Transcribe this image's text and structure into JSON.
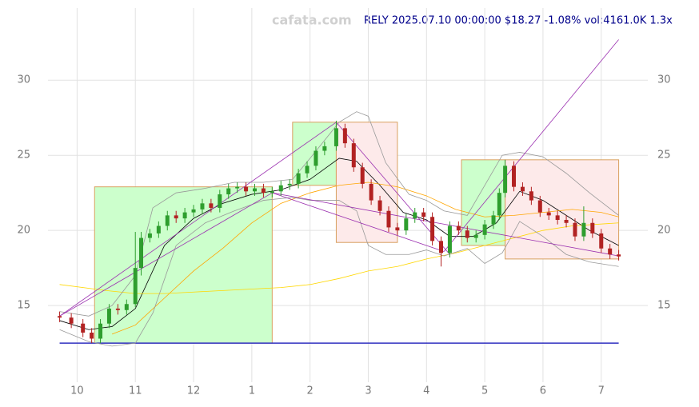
{
  "chart_data": {
    "type": "candlestick",
    "watermark": "cafata.com",
    "title": "RELY 2025.07.10 00:00:00 $18.27 -1.08% vol:4161.0K 1.3x",
    "xlim": [
      9.5,
      19.8
    ],
    "ylim": [
      9.9,
      34.8
    ],
    "xticks": [
      10,
      11,
      12,
      {
        "value": 13,
        "label": "1"
      },
      {
        "value": 14,
        "label": "2"
      },
      {
        "value": 15,
        "label": "3"
      },
      {
        "value": 16,
        "label": "4"
      },
      {
        "value": 17,
        "label": "5"
      },
      {
        "value": 18,
        "label": "6"
      },
      {
        "value": 19,
        "label": "7"
      }
    ],
    "yticks": [
      15,
      20,
      25,
      30
    ],
    "grid": true,
    "up_color": "#2e9e2e",
    "down_color": "#b22222",
    "x": [
      9.7,
      9.9,
      10.1,
      10.25,
      10.4,
      10.55,
      10.7,
      10.85,
      11.0,
      11.1,
      11.25,
      11.4,
      11.55,
      11.7,
      11.85,
      12.0,
      12.15,
      12.3,
      12.45,
      12.6,
      12.75,
      12.9,
      13.05,
      13.2,
      13.35,
      13.5,
      13.65,
      13.8,
      13.95,
      14.1,
      14.25,
      14.45,
      14.6,
      14.75,
      14.9,
      15.05,
      15.2,
      15.35,
      15.5,
      15.65,
      15.8,
      15.95,
      16.1,
      16.25,
      16.4,
      16.55,
      16.7,
      16.85,
      17.0,
      17.15,
      17.25,
      17.35,
      17.5,
      17.65,
      17.8,
      17.95,
      18.1,
      18.25,
      18.4,
      18.55,
      18.7,
      18.85,
      19.0,
      19.15,
      19.3
    ],
    "open": [
      14.3,
      14.2,
      13.8,
      13.2,
      12.8,
      13.8,
      14.8,
      14.7,
      15.1,
      17.5,
      19.5,
      19.8,
      20.3,
      21.0,
      20.8,
      21.2,
      21.4,
      21.8,
      21.5,
      22.4,
      22.8,
      22.9,
      22.6,
      22.8,
      22.5,
      22.6,
      23.0,
      23.1,
      23.8,
      24.3,
      25.3,
      25.6,
      26.8,
      25.8,
      24.2,
      23.1,
      22.0,
      21.3,
      20.2,
      20.0,
      20.8,
      21.2,
      20.9,
      19.3,
      18.5,
      20.3,
      20.0,
      19.5,
      19.7,
      20.4,
      21.0,
      22.5,
      24.3,
      22.9,
      22.6,
      22.0,
      21.2,
      21.0,
      20.7,
      20.5,
      19.6,
      20.5,
      19.8,
      18.8,
      18.4
    ],
    "high": [
      14.6,
      14.5,
      14.1,
      13.5,
      14.1,
      15.1,
      15.1,
      15.4,
      19.9,
      19.9,
      20.1,
      20.6,
      21.3,
      21.3,
      21.5,
      21.7,
      22.1,
      22.1,
      22.7,
      23.1,
      23.2,
      23.2,
      23.1,
      23.1,
      22.9,
      23.3,
      23.4,
      24.1,
      24.6,
      25.6,
      25.9,
      27.3,
      27.1,
      26.1,
      24.5,
      23.4,
      22.3,
      21.6,
      20.5,
      21.1,
      21.5,
      21.5,
      21.2,
      19.6,
      20.6,
      20.6,
      20.3,
      20.0,
      20.7,
      21.3,
      22.8,
      24.7,
      24.6,
      23.2,
      22.9,
      22.3,
      21.5,
      21.3,
      21.0,
      20.8,
      21.6,
      20.8,
      20.1,
      19.1,
      18.7
    ],
    "low": [
      13.9,
      13.5,
      12.9,
      12.5,
      12.5,
      13.5,
      14.4,
      14.4,
      14.9,
      17.0,
      19.2,
      19.5,
      20.0,
      20.5,
      20.5,
      20.9,
      21.1,
      21.2,
      21.2,
      22.1,
      22.5,
      22.3,
      22.3,
      22.2,
      22.2,
      22.3,
      22.7,
      22.8,
      23.5,
      24.0,
      25.0,
      25.3,
      25.5,
      23.9,
      22.8,
      21.7,
      21.0,
      19.9,
      19.7,
      19.7,
      20.5,
      20.6,
      19.0,
      17.6,
      18.2,
      19.7,
      19.2,
      19.2,
      19.4,
      20.1,
      20.7,
      22.2,
      22.6,
      22.3,
      21.7,
      20.9,
      20.7,
      20.4,
      20.2,
      19.3,
      19.3,
      19.5,
      18.5,
      18.1,
      18.0
    ],
    "close": [
      14.2,
      13.8,
      13.2,
      12.8,
      13.8,
      14.8,
      14.7,
      15.1,
      17.5,
      19.5,
      19.8,
      20.3,
      21.0,
      20.8,
      21.2,
      21.4,
      21.8,
      21.5,
      22.4,
      22.8,
      22.9,
      22.6,
      22.8,
      22.5,
      22.6,
      23.0,
      23.1,
      23.8,
      24.3,
      25.3,
      25.6,
      26.8,
      25.8,
      24.2,
      23.1,
      22.0,
      21.3,
      20.2,
      20.0,
      20.8,
      21.2,
      20.9,
      19.3,
      18.5,
      20.3,
      20.0,
      19.5,
      19.7,
      20.4,
      21.0,
      22.5,
      24.3,
      22.9,
      22.6,
      22.0,
      21.2,
      21.0,
      20.7,
      20.5,
      19.6,
      20.5,
      19.8,
      18.8,
      18.4,
      18.27
    ],
    "boxes": [
      {
        "x": [
          10.3,
          13.35
        ],
        "y": [
          12.5,
          22.9
        ],
        "color": "#ccffcc"
      },
      {
        "x": [
          13.7,
          14.45
        ],
        "y": [
          23.0,
          27.2
        ],
        "color": "#ccffcc"
      },
      {
        "x": [
          14.45,
          15.5
        ],
        "y": [
          19.2,
          27.2
        ],
        "color": "#fdeaea"
      },
      {
        "x": [
          16.6,
          17.35
        ],
        "y": [
          19.0,
          24.7
        ],
        "color": "#ccffcc"
      },
      {
        "x": [
          17.35,
          19.3
        ],
        "y": [
          18.1,
          24.7
        ],
        "color": "#fdeaea"
      }
    ],
    "lines": [
      {
        "color": "#000000",
        "x": [
          9.7,
          10.2,
          10.6,
          11.0,
          11.5,
          12.0,
          12.5,
          13.0,
          13.5,
          14.0,
          14.5,
          14.8,
          15.2,
          15.6,
          16.0,
          16.4,
          16.8,
          17.2,
          17.6,
          18.0,
          18.4,
          18.8,
          19.3
        ],
        "values": [
          14.0,
          13.4,
          13.6,
          14.8,
          19.0,
          20.8,
          21.8,
          22.4,
          22.7,
          23.4,
          24.8,
          24.6,
          23.0,
          21.2,
          20.7,
          19.6,
          19.6,
          20.5,
          22.6,
          22.0,
          21.0,
          20.0,
          19.0
        ]
      },
      {
        "color": "#ffa500",
        "x": [
          10.6,
          11.0,
          11.5,
          12.0,
          12.5,
          13.0,
          13.5,
          14.0,
          14.5,
          15.0,
          15.5,
          16.0,
          16.5,
          17.0,
          17.5,
          18.0,
          18.5,
          19.0,
          19.3
        ],
        "values": [
          13.1,
          13.7,
          15.5,
          17.3,
          18.8,
          20.5,
          21.8,
          22.5,
          23.0,
          23.2,
          22.9,
          22.3,
          21.4,
          20.9,
          21.0,
          21.2,
          21.4,
          21.2,
          20.9
        ]
      },
      {
        "color": "#ffd700",
        "x": [
          9.7,
          10.5,
          11.0,
          11.5,
          12.0,
          12.5,
          13.0,
          13.5,
          14.0,
          14.5,
          15.0,
          15.5,
          16.0,
          16.5,
          17.0,
          17.5,
          18.0,
          18.5,
          19.3
        ],
        "values": [
          16.4,
          16.0,
          15.8,
          15.8,
          15.9,
          16.0,
          16.1,
          16.2,
          16.4,
          16.8,
          17.3,
          17.6,
          18.1,
          18.5,
          19.0,
          19.5,
          20.0,
          20.3,
          20.5
        ]
      },
      {
        "color": "#999999",
        "x": [
          9.7,
          10.2,
          10.6,
          11.0,
          11.3,
          11.7,
          12.2,
          12.7,
          13.2,
          13.7,
          14.0,
          14.5,
          14.8,
          15.0,
          15.3,
          15.7,
          16.0,
          16.3,
          16.7,
          17.0,
          17.3,
          17.6,
          18.0,
          18.4,
          18.8,
          19.3
        ],
        "values": [
          14.6,
          14.3,
          15.0,
          17.0,
          21.5,
          22.5,
          22.8,
          23.2,
          23.2,
          23.4,
          24.8,
          27.2,
          27.9,
          27.6,
          24.5,
          22.4,
          22.0,
          21.3,
          21.0,
          23.0,
          25.0,
          25.2,
          24.9,
          23.8,
          22.5,
          21.0
        ]
      },
      {
        "color": "#999999",
        "x": [
          9.7,
          10.2,
          10.6,
          11.0,
          11.3,
          11.7,
          12.2,
          12.7,
          13.2,
          13.7,
          14.0,
          14.5,
          14.8,
          15.0,
          15.3,
          15.7,
          16.0,
          16.3,
          16.7,
          17.0,
          17.3,
          17.6,
          18.0,
          18.4,
          18.8,
          19.3
        ],
        "values": [
          13.4,
          12.6,
          12.3,
          12.5,
          14.5,
          19.0,
          20.5,
          21.3,
          22.0,
          22.2,
          22.0,
          22.0,
          21.3,
          19.0,
          18.4,
          18.4,
          18.7,
          18.3,
          18.8,
          17.8,
          18.5,
          20.6,
          19.6,
          18.4,
          17.9,
          17.6
        ]
      }
    ],
    "trend_color": "#9b30b0",
    "trend_lines": [
      {
        "x": [
          9.7,
          14.45
        ],
        "y": [
          14.3,
          27.2
        ]
      },
      {
        "x": [
          9.7,
          13.35
        ],
        "y": [
          14.3,
          22.5
        ]
      },
      {
        "x": [
          13.35,
          16.3
        ],
        "y": [
          22.5,
          18.6
        ]
      },
      {
        "x": [
          14.45,
          16.4
        ],
        "y": [
          27.2,
          18.4
        ]
      },
      {
        "x": [
          16.3,
          19.3
        ],
        "y": [
          18.6,
          32.7
        ]
      },
      {
        "x": [
          13.35,
          19.3
        ],
        "y": [
          22.5,
          18.3
        ]
      }
    ],
    "baseline": 12.5,
    "baseline_color": "#3030c0"
  }
}
